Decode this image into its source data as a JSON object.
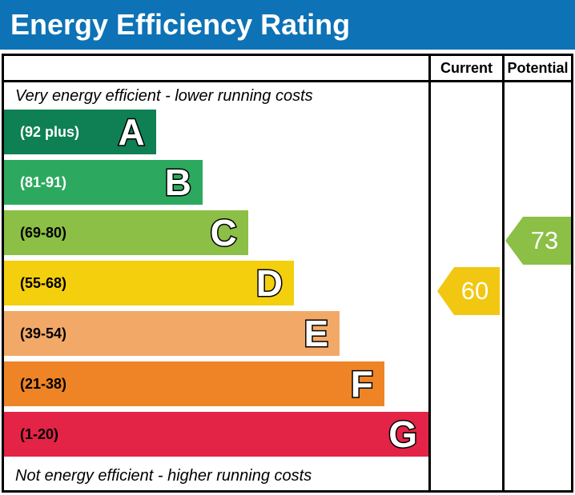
{
  "title": "Energy Efficiency Rating",
  "theme": {
    "title_bar_bg": "#0d72b6",
    "title_color": "#ffffff",
    "border_color": "#000000"
  },
  "header": {
    "current": "Current",
    "potential": "Potential"
  },
  "captions": {
    "top": "Very energy efficient - lower running costs",
    "bottom": "Not energy efficient - higher running costs"
  },
  "bands": [
    {
      "letter": "A",
      "range": "(92 plus)",
      "color": "#0e8054",
      "width_pct": "35.8%",
      "label_color": "#ffffff"
    },
    {
      "letter": "B",
      "range": "(81-91)",
      "color": "#2ca95e",
      "width_pct": "46.8%",
      "label_color": "#ffffff"
    },
    {
      "letter": "C",
      "range": "(69-80)",
      "color": "#8bbf45",
      "width_pct": "57.5%",
      "label_color": "#000000"
    },
    {
      "letter": "D",
      "range": "(55-68)",
      "color": "#f4cf0e",
      "width_pct": "68.3%",
      "label_color": "#000000"
    },
    {
      "letter": "E",
      "range": "(39-54)",
      "color": "#f2a968",
      "width_pct": "79.1%",
      "label_color": "#000000"
    },
    {
      "letter": "F",
      "range": "(21-38)",
      "color": "#ee8426",
      "width_pct": "89.6%",
      "label_color": "#000000"
    },
    {
      "letter": "G",
      "range": "(1-20)",
      "color": "#e32446",
      "width_pct": "100%",
      "label_color": "#000000"
    }
  ],
  "ratings": {
    "current": {
      "value": "60",
      "band": "D",
      "color": "#f2c711"
    },
    "potential": {
      "value": "73",
      "band": "C",
      "color": "#8cbf45"
    }
  },
  "chart_data": {
    "type": "bar",
    "orientation": "horizontal",
    "title": "Energy Efficiency Rating",
    "categories": [
      "A",
      "B",
      "C",
      "D",
      "E",
      "F",
      "G"
    ],
    "band_ranges": [
      "92 plus",
      "81-91",
      "69-80",
      "55-68",
      "39-54",
      "21-38",
      "1-20"
    ],
    "band_relative_widths": [
      0.36,
      0.47,
      0.58,
      0.68,
      0.79,
      0.9,
      1.0
    ],
    "band_colors": [
      "#0e8054",
      "#2ca95e",
      "#8bbf45",
      "#f4cf0e",
      "#f2a968",
      "#ee8426",
      "#e32446"
    ],
    "columns": [
      "Current",
      "Potential"
    ],
    "markers": [
      {
        "name": "Current",
        "value": 60,
        "band": "D",
        "color": "#f2c711"
      },
      {
        "name": "Potential",
        "value": 73,
        "band": "C",
        "color": "#8cbf45"
      }
    ],
    "annotations": [
      "Very energy efficient - lower running costs",
      "Not energy efficient - higher running costs"
    ],
    "legend": "none",
    "grid": "off"
  }
}
